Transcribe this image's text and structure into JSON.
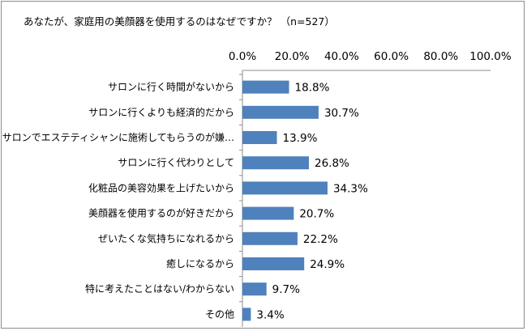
{
  "chart_data": {
    "type": "bar",
    "orientation": "horizontal",
    "title": "あなたが、家庭用の美顔器を使用するのはなぜですか？ （n=527）",
    "categories": [
      "サロンに行く時間がないから",
      "サロンに行くよりも経済的だから",
      "サロンでエステティシャンに施術してもらうのが嫌…",
      "サロンに行く代わりとして",
      "化粧品の美容効果を上げたいから",
      "美顔器を使用するのが好きだから",
      "ぜいたくな気持ちになれるから",
      "癒しになるから",
      "特に考えたことはない/わからない",
      "その他"
    ],
    "values": [
      18.8,
      30.7,
      13.9,
      26.8,
      34.3,
      20.7,
      22.2,
      24.9,
      9.7,
      3.4
    ],
    "value_labels": [
      "18.8%",
      "30.7%",
      "13.9%",
      "26.8%",
      "34.3%",
      "20.7%",
      "22.2%",
      "24.9%",
      "9.7%",
      "3.4%"
    ],
    "xlim": [
      0,
      100
    ],
    "x_ticks": [
      "0.0%",
      "20.0%",
      "40.0%",
      "60.0%",
      "80.0%",
      "100.0%"
    ],
    "axis_position": "top",
    "grid": false,
    "legend": "none",
    "bar_color": "#4f81bd"
  }
}
